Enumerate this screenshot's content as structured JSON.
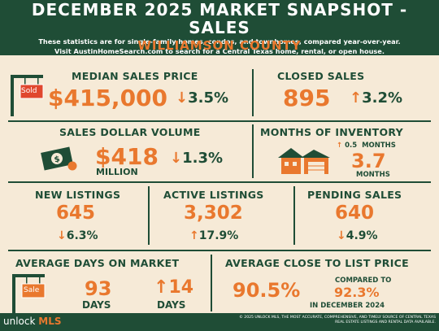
{
  "header": {
    "title": "DECEMBER 2025 MARKET SNAPSHOT - SALES",
    "line1": "These statistics are for single-family homes, condos, and townhomes, compared year-over-year.",
    "line2": "Visit AustinHomeSearch.com to search for a Central Texas home, rental, or open house."
  },
  "county": "WILLIAMSON COUNTY",
  "median": {
    "label": "MEDIAN SALES PRICE",
    "value": "$415,000",
    "arrow": "↓",
    "change": "3.5%",
    "sign": "Sold"
  },
  "closed": {
    "label": "CLOSED SALES",
    "value": "895",
    "arrow": "↑",
    "change": "3.2%"
  },
  "volume": {
    "label": "SALES DOLLAR VOLUME",
    "value": "$418",
    "unit": "MILLION",
    "arrow": "↓",
    "change": "1.3%"
  },
  "inventory": {
    "label": "MONTHS OF INVENTORY",
    "arrow": "↑",
    "delta": "0.5",
    "delta_unit": "MONTHS",
    "value": "3.7",
    "unit": "MONTHS"
  },
  "new_listings": {
    "label": "NEW LISTINGS",
    "value": "645",
    "arrow": "↓",
    "change": "6.3%"
  },
  "active_listings": {
    "label": "ACTIVE LISTINGS",
    "value": "3,302",
    "arrow": "↑",
    "change": "17.9%"
  },
  "pending": {
    "label": "PENDING SALES",
    "value": "640",
    "arrow": "↓",
    "change": "4.9%"
  },
  "days": {
    "label": "AVERAGE DAYS ON MARKET",
    "value": "93",
    "unit": "DAYS",
    "arrow": "↑",
    "change": "14",
    "change_unit": "DAYS",
    "sign": "Sale"
  },
  "close_list": {
    "label": "AVERAGE CLOSE TO LIST PRICE",
    "value": "90.5%",
    "compared_label": "COMPARED TO",
    "compared_value": "92.3%",
    "compared_period": "IN DECEMBER 2024"
  },
  "footer": {
    "logo_a": "unlock",
    "logo_b": "MLS",
    "legal": "© 2025 UNLOCK MLS, THE MOST ACCURATE, COMPREHENSIVE, AND TIMELY SOURCE OF CENTRAL TEXAS REAL ESTATE LISTINGS AND RENTAL DATA AVAILABLE."
  },
  "colors": {
    "green": "#1f4d36",
    "orange": "#e9782e",
    "cream": "#f6ead7"
  }
}
